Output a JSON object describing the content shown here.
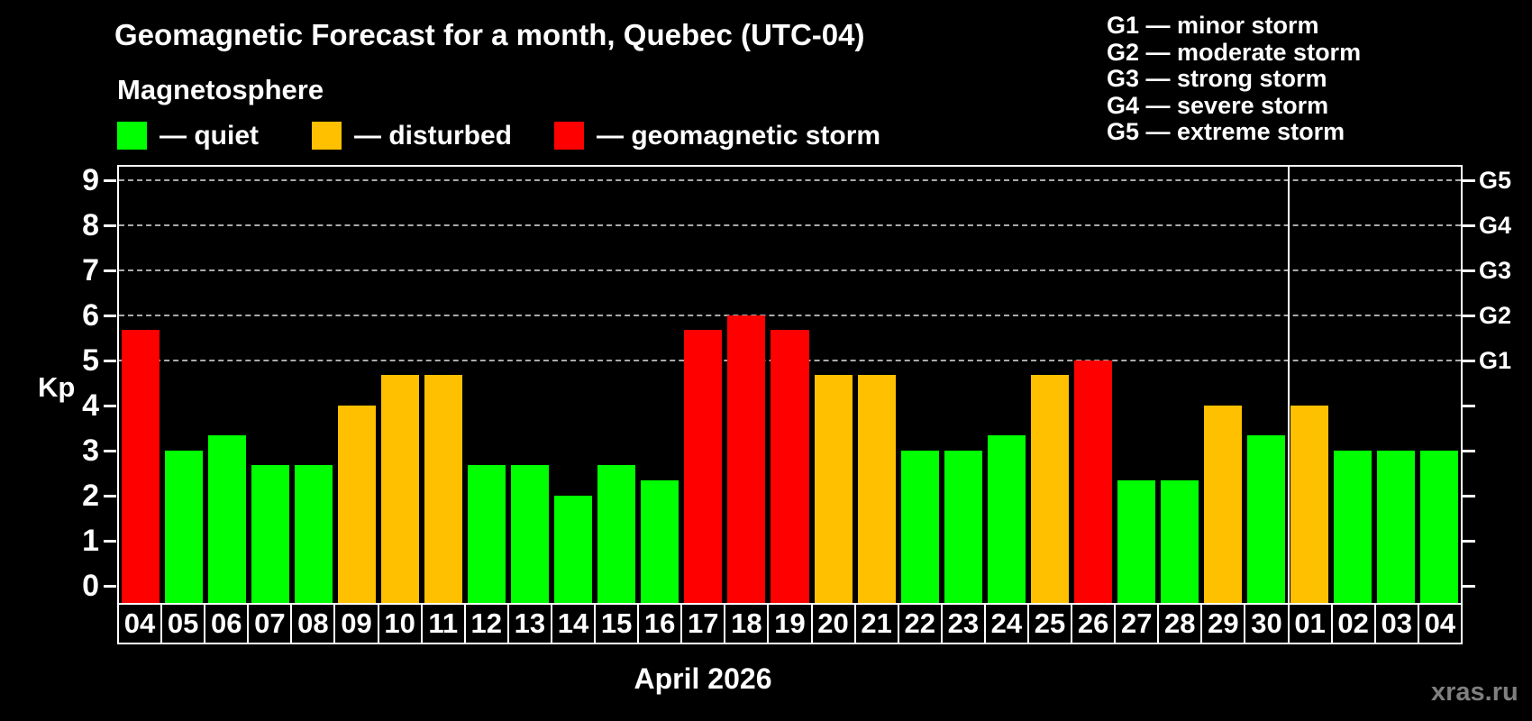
{
  "title": "Geomagnetic Forecast for a month, Quebec (UTC-04)",
  "subtitle": "Magnetosphere",
  "legend": {
    "items": [
      {
        "key": "quiet",
        "label": "— quiet",
        "color": "#00FF00"
      },
      {
        "key": "disturbed",
        "label": "— disturbed",
        "color": "#FFC000"
      },
      {
        "key": "storm",
        "label": "— geomagnetic storm",
        "color": "#FF0000"
      }
    ]
  },
  "storm_scale": [
    "G1 — minor storm",
    "G2 — moderate storm",
    "G3 — strong storm",
    "G4 — severe storm",
    "G5 — extreme storm"
  ],
  "watermark": "xras.ru",
  "chart_data": {
    "type": "bar",
    "title": "Geomagnetic Forecast for a month, Quebec (UTC-04)",
    "ylabel": "Kp",
    "xlabel": "April 2026",
    "ylim": [
      0,
      9
    ],
    "yticks": [
      0,
      1,
      2,
      3,
      4,
      5,
      6,
      7,
      8,
      9
    ],
    "gridlines_kp": [
      5,
      6,
      7,
      8,
      9
    ],
    "grid": "dashed, only at G-storm levels (Kp 5-9)",
    "right_axis": [
      {
        "label": "G1",
        "kp": 5
      },
      {
        "label": "G2",
        "kp": 6
      },
      {
        "label": "G3",
        "kp": 7
      },
      {
        "label": "G4",
        "kp": 8
      },
      {
        "label": "G5",
        "kp": 9
      }
    ],
    "month_separator_after_index": 26,
    "colors": {
      "quiet": "#00FF00",
      "disturbed": "#FFC000",
      "storm": "#FF0000"
    },
    "days": [
      {
        "date": "04",
        "kp": 5.67,
        "level": "storm"
      },
      {
        "date": "05",
        "kp": 3.0,
        "level": "quiet"
      },
      {
        "date": "06",
        "kp": 3.33,
        "level": "quiet"
      },
      {
        "date": "07",
        "kp": 2.67,
        "level": "quiet"
      },
      {
        "date": "08",
        "kp": 2.67,
        "level": "quiet"
      },
      {
        "date": "09",
        "kp": 4.0,
        "level": "disturbed"
      },
      {
        "date": "10",
        "kp": 4.67,
        "level": "disturbed"
      },
      {
        "date": "11",
        "kp": 4.67,
        "level": "disturbed"
      },
      {
        "date": "12",
        "kp": 2.67,
        "level": "quiet"
      },
      {
        "date": "13",
        "kp": 2.67,
        "level": "quiet"
      },
      {
        "date": "14",
        "kp": 2.0,
        "level": "quiet"
      },
      {
        "date": "15",
        "kp": 2.67,
        "level": "quiet"
      },
      {
        "date": "16",
        "kp": 2.33,
        "level": "quiet"
      },
      {
        "date": "17",
        "kp": 5.67,
        "level": "storm"
      },
      {
        "date": "18",
        "kp": 6.0,
        "level": "storm"
      },
      {
        "date": "19",
        "kp": 5.67,
        "level": "storm"
      },
      {
        "date": "20",
        "kp": 4.67,
        "level": "disturbed"
      },
      {
        "date": "21",
        "kp": 4.67,
        "level": "disturbed"
      },
      {
        "date": "22",
        "kp": 3.0,
        "level": "quiet"
      },
      {
        "date": "23",
        "kp": 3.0,
        "level": "quiet"
      },
      {
        "date": "24",
        "kp": 3.33,
        "level": "quiet"
      },
      {
        "date": "25",
        "kp": 4.67,
        "level": "disturbed"
      },
      {
        "date": "26",
        "kp": 5.0,
        "level": "storm"
      },
      {
        "date": "27",
        "kp": 2.33,
        "level": "quiet"
      },
      {
        "date": "28",
        "kp": 2.33,
        "level": "quiet"
      },
      {
        "date": "29",
        "kp": 4.0,
        "level": "disturbed"
      },
      {
        "date": "30",
        "kp": 3.33,
        "level": "quiet"
      },
      {
        "date": "01",
        "kp": 4.0,
        "level": "disturbed"
      },
      {
        "date": "02",
        "kp": 3.0,
        "level": "quiet"
      },
      {
        "date": "03",
        "kp": 3.0,
        "level": "quiet"
      },
      {
        "date": "04",
        "kp": 3.0,
        "level": "quiet"
      }
    ]
  }
}
